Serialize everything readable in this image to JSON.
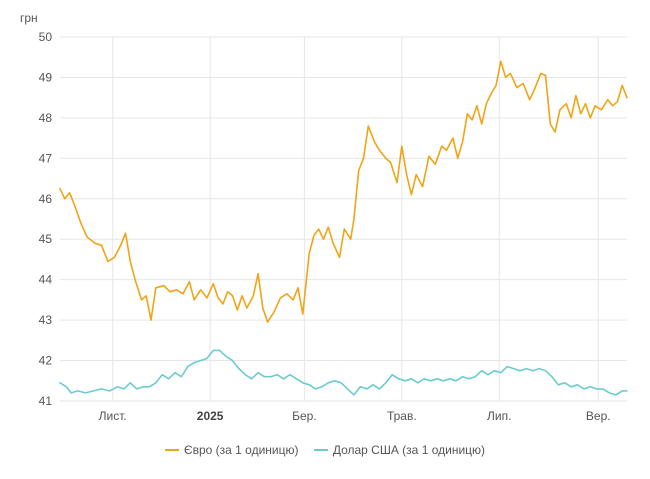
{
  "chart_data": {
    "type": "line",
    "ylabel": "грн",
    "ylim": [
      41,
      50
    ],
    "yticks": [
      "50",
      "49",
      "48",
      "47",
      "46",
      "45",
      "44",
      "43",
      "42",
      "41"
    ],
    "x_tick_labels": [
      {
        "label": "Лист.",
        "date": "2024-11-01",
        "bold": false
      },
      {
        "label": "2025",
        "date": "2025-01-01",
        "bold": true
      },
      {
        "label": "Бер.",
        "date": "2025-03-01",
        "bold": false
      },
      {
        "label": "Трав.",
        "date": "2025-05-01",
        "bold": false
      },
      {
        "label": "Лип.",
        "date": "2025-07-01",
        "bold": false
      },
      {
        "label": "Вер.",
        "date": "2025-09-01",
        "bold": false
      }
    ],
    "xlim": [
      "2024-09-29",
      "2025-09-19"
    ],
    "grid": true,
    "legend_position": "bottom",
    "series": [
      {
        "name": "Євро (за 1 одиницю)",
        "color": "#f0a417",
        "points": [
          [
            "2024-09-29",
            46.25
          ],
          [
            "2024-10-02",
            46.0
          ],
          [
            "2024-10-05",
            46.15
          ],
          [
            "2024-10-08",
            45.85
          ],
          [
            "2024-10-12",
            45.4
          ],
          [
            "2024-10-16",
            45.05
          ],
          [
            "2024-10-21",
            44.9
          ],
          [
            "2024-10-25",
            44.85
          ],
          [
            "2024-10-29",
            44.45
          ],
          [
            "2024-11-02",
            44.55
          ],
          [
            "2024-11-06",
            44.85
          ],
          [
            "2024-11-09",
            45.15
          ],
          [
            "2024-11-12",
            44.45
          ],
          [
            "2024-11-15",
            44.0
          ],
          [
            "2024-11-19",
            43.5
          ],
          [
            "2024-11-22",
            43.6
          ],
          [
            "2024-11-25",
            43.0
          ],
          [
            "2024-11-28",
            43.8
          ],
          [
            "2024-12-03",
            43.85
          ],
          [
            "2024-12-07",
            43.7
          ],
          [
            "2024-12-11",
            43.75
          ],
          [
            "2024-12-15",
            43.65
          ],
          [
            "2024-12-19",
            43.95
          ],
          [
            "2024-12-22",
            43.5
          ],
          [
            "2024-12-26",
            43.75
          ],
          [
            "2024-12-30",
            43.55
          ],
          [
            "2025-01-03",
            43.9
          ],
          [
            "2025-01-06",
            43.55
          ],
          [
            "2025-01-09",
            43.4
          ],
          [
            "2025-01-12",
            43.7
          ],
          [
            "2025-01-15",
            43.6
          ],
          [
            "2025-01-18",
            43.25
          ],
          [
            "2025-01-21",
            43.6
          ],
          [
            "2025-01-24",
            43.3
          ],
          [
            "2025-01-28",
            43.6
          ],
          [
            "2025-01-31",
            44.15
          ],
          [
            "2025-02-03",
            43.3
          ],
          [
            "2025-02-06",
            42.95
          ],
          [
            "2025-02-10",
            43.2
          ],
          [
            "2025-02-14",
            43.55
          ],
          [
            "2025-02-18",
            43.65
          ],
          [
            "2025-02-22",
            43.5
          ],
          [
            "2025-02-25",
            43.8
          ],
          [
            "2025-02-28",
            43.15
          ],
          [
            "2025-03-04",
            44.65
          ],
          [
            "2025-03-07",
            45.1
          ],
          [
            "2025-03-10",
            45.25
          ],
          [
            "2025-03-13",
            45.0
          ],
          [
            "2025-03-16",
            45.3
          ],
          [
            "2025-03-19",
            44.9
          ],
          [
            "2025-03-23",
            44.55
          ],
          [
            "2025-03-26",
            45.25
          ],
          [
            "2025-03-30",
            45.0
          ],
          [
            "2025-04-01",
            45.5
          ],
          [
            "2025-04-04",
            46.7
          ],
          [
            "2025-04-07",
            47.0
          ],
          [
            "2025-04-10",
            47.8
          ],
          [
            "2025-04-14",
            47.4
          ],
          [
            "2025-04-17",
            47.2
          ],
          [
            "2025-04-21",
            47.0
          ],
          [
            "2025-04-24",
            46.9
          ],
          [
            "2025-04-28",
            46.4
          ],
          [
            "2025-05-01",
            47.3
          ],
          [
            "2025-05-04",
            46.6
          ],
          [
            "2025-05-07",
            46.1
          ],
          [
            "2025-05-10",
            46.6
          ],
          [
            "2025-05-14",
            46.3
          ],
          [
            "2025-05-18",
            47.05
          ],
          [
            "2025-05-22",
            46.85
          ],
          [
            "2025-05-26",
            47.3
          ],
          [
            "2025-05-29",
            47.2
          ],
          [
            "2025-06-02",
            47.5
          ],
          [
            "2025-06-05",
            47.0
          ],
          [
            "2025-06-08",
            47.4
          ],
          [
            "2025-06-11",
            48.1
          ],
          [
            "2025-06-14",
            47.95
          ],
          [
            "2025-06-17",
            48.3
          ],
          [
            "2025-06-20",
            47.85
          ],
          [
            "2025-06-23",
            48.35
          ],
          [
            "2025-06-26",
            48.6
          ],
          [
            "2025-06-29",
            48.8
          ],
          [
            "2025-07-02",
            49.4
          ],
          [
            "2025-07-05",
            49.0
          ],
          [
            "2025-07-08",
            49.1
          ],
          [
            "2025-07-12",
            48.75
          ],
          [
            "2025-07-16",
            48.85
          ],
          [
            "2025-07-20",
            48.45
          ],
          [
            "2025-07-23",
            48.7
          ],
          [
            "2025-07-27",
            49.1
          ],
          [
            "2025-07-30",
            49.05
          ],
          [
            "2025-08-02",
            47.85
          ],
          [
            "2025-08-05",
            47.65
          ],
          [
            "2025-08-08",
            48.2
          ],
          [
            "2025-08-12",
            48.35
          ],
          [
            "2025-08-15",
            48.0
          ],
          [
            "2025-08-18",
            48.55
          ],
          [
            "2025-08-21",
            48.1
          ],
          [
            "2025-08-24",
            48.35
          ],
          [
            "2025-08-27",
            48.0
          ],
          [
            "2025-08-30",
            48.3
          ],
          [
            "2025-09-03",
            48.2
          ],
          [
            "2025-09-07",
            48.45
          ],
          [
            "2025-09-10",
            48.3
          ],
          [
            "2025-09-13",
            48.4
          ],
          [
            "2025-09-16",
            48.8
          ],
          [
            "2025-09-19",
            48.5
          ]
        ]
      },
      {
        "name": "Долар США (за 1 одиницю)",
        "color": "#6ccbd1",
        "points": [
          [
            "2024-09-29",
            41.45
          ],
          [
            "2024-10-03",
            41.35
          ],
          [
            "2024-10-06",
            41.2
          ],
          [
            "2024-10-10",
            41.25
          ],
          [
            "2024-10-15",
            41.2
          ],
          [
            "2024-10-20",
            41.25
          ],
          [
            "2024-10-25",
            41.3
          ],
          [
            "2024-10-30",
            41.25
          ],
          [
            "2024-11-04",
            41.35
          ],
          [
            "2024-11-08",
            41.3
          ],
          [
            "2024-11-12",
            41.45
          ],
          [
            "2024-11-16",
            41.3
          ],
          [
            "2024-11-20",
            41.35
          ],
          [
            "2024-11-24",
            41.35
          ],
          [
            "2024-11-28",
            41.45
          ],
          [
            "2024-12-02",
            41.65
          ],
          [
            "2024-12-06",
            41.55
          ],
          [
            "2024-12-10",
            41.7
          ],
          [
            "2024-12-14",
            41.6
          ],
          [
            "2024-12-18",
            41.85
          ],
          [
            "2024-12-22",
            41.95
          ],
          [
            "2024-12-26",
            42.0
          ],
          [
            "2024-12-30",
            42.05
          ],
          [
            "2025-01-03",
            42.25
          ],
          [
            "2025-01-07",
            42.25
          ],
          [
            "2025-01-11",
            42.1
          ],
          [
            "2025-01-15",
            42.0
          ],
          [
            "2025-01-19",
            41.8
          ],
          [
            "2025-01-23",
            41.65
          ],
          [
            "2025-01-27",
            41.55
          ],
          [
            "2025-01-31",
            41.7
          ],
          [
            "2025-02-04",
            41.6
          ],
          [
            "2025-02-08",
            41.6
          ],
          [
            "2025-02-12",
            41.65
          ],
          [
            "2025-02-16",
            41.55
          ],
          [
            "2025-02-20",
            41.65
          ],
          [
            "2025-02-24",
            41.55
          ],
          [
            "2025-02-28",
            41.45
          ],
          [
            "2025-03-04",
            41.4
          ],
          [
            "2025-03-08",
            41.3
          ],
          [
            "2025-03-12",
            41.35
          ],
          [
            "2025-03-16",
            41.45
          ],
          [
            "2025-03-20",
            41.5
          ],
          [
            "2025-03-24",
            41.45
          ],
          [
            "2025-03-28",
            41.3
          ],
          [
            "2025-04-01",
            41.15
          ],
          [
            "2025-04-05",
            41.35
          ],
          [
            "2025-04-09",
            41.3
          ],
          [
            "2025-04-13",
            41.4
          ],
          [
            "2025-04-17",
            41.3
          ],
          [
            "2025-04-21",
            41.45
          ],
          [
            "2025-04-25",
            41.65
          ],
          [
            "2025-04-29",
            41.55
          ],
          [
            "2025-05-03",
            41.5
          ],
          [
            "2025-05-07",
            41.55
          ],
          [
            "2025-05-11",
            41.45
          ],
          [
            "2025-05-15",
            41.55
          ],
          [
            "2025-05-19",
            41.5
          ],
          [
            "2025-05-23",
            41.55
          ],
          [
            "2025-05-27",
            41.5
          ],
          [
            "2025-05-31",
            41.55
          ],
          [
            "2025-06-04",
            41.5
          ],
          [
            "2025-06-08",
            41.6
          ],
          [
            "2025-06-12",
            41.55
          ],
          [
            "2025-06-16",
            41.6
          ],
          [
            "2025-06-20",
            41.75
          ],
          [
            "2025-06-24",
            41.65
          ],
          [
            "2025-06-28",
            41.75
          ],
          [
            "2025-07-02",
            41.7
          ],
          [
            "2025-07-06",
            41.85
          ],
          [
            "2025-07-10",
            41.8
          ],
          [
            "2025-07-14",
            41.75
          ],
          [
            "2025-07-18",
            41.8
          ],
          [
            "2025-07-22",
            41.75
          ],
          [
            "2025-07-26",
            41.8
          ],
          [
            "2025-07-30",
            41.75
          ],
          [
            "2025-08-03",
            41.6
          ],
          [
            "2025-08-07",
            41.4
          ],
          [
            "2025-08-11",
            41.45
          ],
          [
            "2025-08-15",
            41.35
          ],
          [
            "2025-08-19",
            41.4
          ],
          [
            "2025-08-23",
            41.3
          ],
          [
            "2025-08-27",
            41.35
          ],
          [
            "2025-08-31",
            41.3
          ],
          [
            "2025-09-04",
            41.3
          ],
          [
            "2025-09-08",
            41.2
          ],
          [
            "2025-09-12",
            41.15
          ],
          [
            "2025-09-16",
            41.25
          ],
          [
            "2025-09-19",
            41.25
          ]
        ]
      }
    ]
  }
}
